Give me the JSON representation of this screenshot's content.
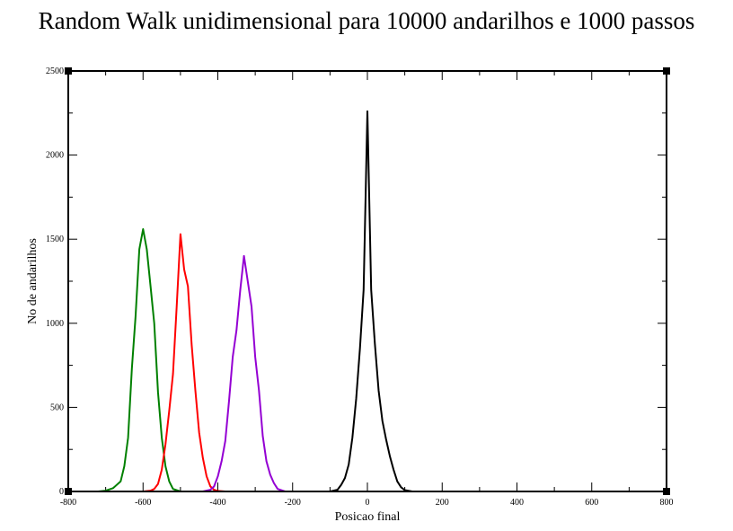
{
  "chart_data": {
    "type": "line",
    "title": "Random Walk unidimensional para 10000 andarilhos e 1000 passos",
    "xlabel": "Posicao final",
    "ylabel": "No de andarilhos",
    "xlim": [
      -800,
      800
    ],
    "ylim": [
      0,
      2500
    ],
    "x_ticks": [
      -800,
      -600,
      -400,
      -200,
      0,
      200,
      400,
      600,
      800
    ],
    "y_ticks": [
      0,
      500,
      1000,
      1500,
      2000,
      2500
    ],
    "grid": false,
    "series": [
      {
        "color": "#008000",
        "x": [
          -800,
          -720,
          -700,
          -680,
          -660,
          -650,
          -640,
          -630,
          -620,
          -610,
          -600,
          -590,
          -580,
          -570,
          -560,
          -550,
          -540,
          -530,
          -520,
          -500,
          -480,
          -400,
          800
        ],
        "y": [
          0,
          0,
          5,
          20,
          60,
          150,
          320,
          730,
          1040,
          1440,
          1560,
          1440,
          1220,
          1000,
          590,
          320,
          150,
          60,
          15,
          0,
          0,
          0,
          0
        ]
      },
      {
        "color": "#ff0000",
        "x": [
          -800,
          -600,
          -580,
          -570,
          -560,
          -550,
          -540,
          -530,
          -520,
          -510,
          -500,
          -490,
          -480,
          -470,
          -460,
          -450,
          -440,
          -430,
          -420,
          -410,
          -400,
          -380,
          800
        ],
        "y": [
          0,
          0,
          5,
          15,
          45,
          130,
          280,
          480,
          700,
          1100,
          1530,
          1320,
          1220,
          870,
          600,
          350,
          200,
          90,
          30,
          10,
          3,
          0,
          0
        ]
      },
      {
        "color": "#9400d3",
        "x": [
          -800,
          -440,
          -420,
          -410,
          -400,
          -390,
          -380,
          -370,
          -360,
          -350,
          -340,
          -330,
          -320,
          -310,
          -300,
          -290,
          -280,
          -270,
          -260,
          -250,
          -240,
          -220,
          800
        ],
        "y": [
          0,
          0,
          10,
          30,
          90,
          180,
          300,
          540,
          800,
          960,
          1200,
          1400,
          1250,
          1100,
          800,
          600,
          330,
          180,
          100,
          50,
          15,
          0,
          0
        ]
      },
      {
        "color": "#000000",
        "x": [
          -800,
          -100,
          -80,
          -70,
          -60,
          -50,
          -40,
          -30,
          -20,
          -10,
          0,
          10,
          20,
          30,
          40,
          50,
          60,
          70,
          80,
          90,
          100,
          120,
          800
        ],
        "y": [
          0,
          0,
          10,
          40,
          80,
          160,
          320,
          550,
          850,
          1200,
          2260,
          1200,
          880,
          600,
          420,
          310,
          210,
          130,
          60,
          25,
          8,
          0,
          0
        ]
      }
    ]
  }
}
